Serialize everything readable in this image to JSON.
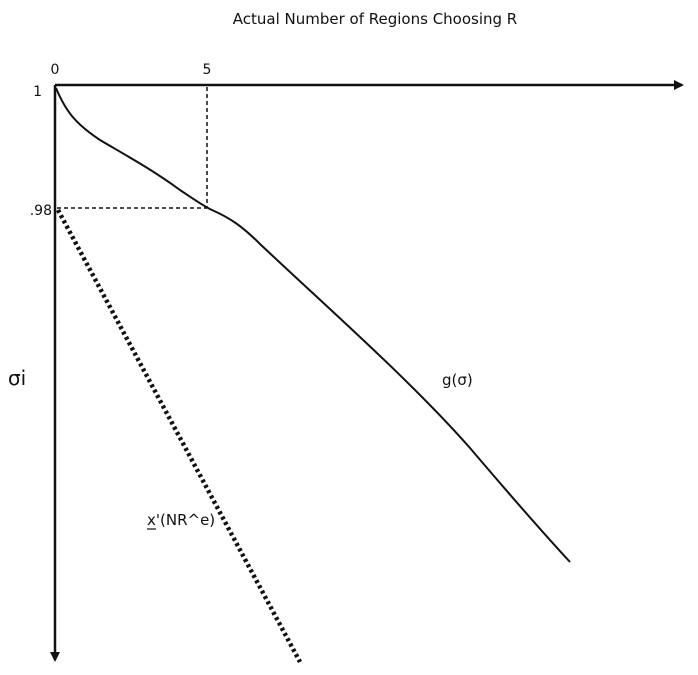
{
  "title": "Actual Number of Regions Choosing R",
  "x_ticks": {
    "zero": "0",
    "five": "5"
  },
  "y_ticks": {
    "one": "1",
    "point_98": ".98"
  },
  "y_axis_label": "σi",
  "curves": {
    "g_label": "g(σ)",
    "x_prime_label": "x'(NR^e)"
  },
  "colors": {
    "ink": "#111111",
    "background": "#ffffff"
  }
}
